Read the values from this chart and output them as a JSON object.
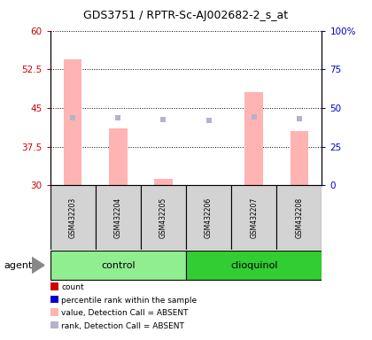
{
  "title": "GDS3751 / RPTR-Sc-AJ002682-2_s_at",
  "samples": [
    "GSM432203",
    "GSM432204",
    "GSM432205",
    "GSM432206",
    "GSM432207",
    "GSM432208"
  ],
  "bar_values": [
    54.5,
    41.0,
    31.2,
    30.1,
    48.0,
    40.5
  ],
  "rank_values": [
    43.5,
    43.5,
    42.5,
    42.0,
    44.0,
    43.0
  ],
  "bar_color": "#ffb3b3",
  "rank_color": "#b3b3cc",
  "ylim_left": [
    30,
    60
  ],
  "ylim_right": [
    0,
    100
  ],
  "yticks_left": [
    30,
    37.5,
    45,
    52.5,
    60
  ],
  "yticks_right": [
    0,
    25,
    50,
    75,
    100
  ],
  "ytick_labels_right": [
    "0",
    "25",
    "50",
    "75",
    "100%"
  ],
  "left_axis_color": "#cc0000",
  "right_axis_color": "#0000cc",
  "control_color": "#90ee90",
  "clioquinol_color": "#32cd32",
  "legend_colors": [
    "#cc0000",
    "#0000cc",
    "#ffb3b3",
    "#b3b3cc"
  ],
  "legend_labels": [
    "count",
    "percentile rank within the sample",
    "value, Detection Call = ABSENT",
    "rank, Detection Call = ABSENT"
  ],
  "group_label": "agent"
}
